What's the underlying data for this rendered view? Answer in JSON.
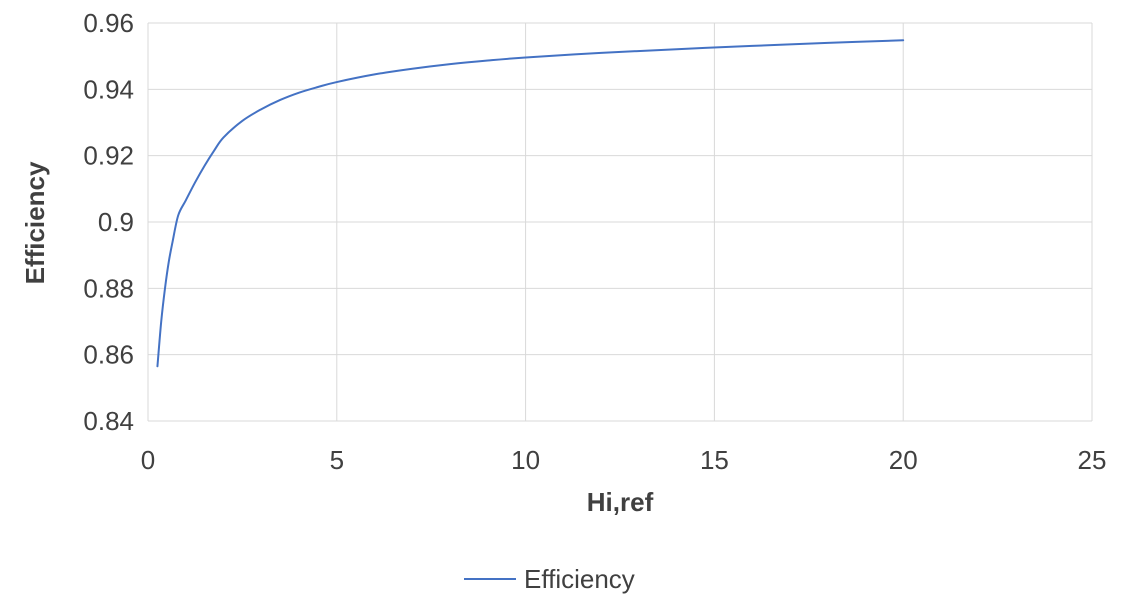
{
  "chart_data": {
    "type": "line",
    "title": "",
    "xlabel": "Hi,ref",
    "ylabel": "Efficiency",
    "xlim": [
      0,
      25
    ],
    "ylim": [
      0.84,
      0.96
    ],
    "x_ticks": [
      0,
      5,
      10,
      15,
      20,
      25
    ],
    "x_tick_labels": [
      "0",
      "5",
      "10",
      "15",
      "20",
      "25"
    ],
    "y_ticks": [
      0.84,
      0.86,
      0.88,
      0.9,
      0.92,
      0.94,
      0.96
    ],
    "y_tick_labels": [
      "0.84",
      "0.86",
      "0.88",
      "0.9",
      "0.92",
      "0.94",
      "0.96"
    ],
    "grid": true,
    "legend_position": "bottom",
    "series": [
      {
        "name": "Efficiency",
        "color": "#4472c4",
        "x": [
          0.25,
          0.35,
          0.45,
          0.55,
          0.65,
          0.8,
          1.0,
          1.25,
          1.5,
          1.75,
          2.0,
          2.5,
          3.0,
          3.5,
          4.0,
          4.5,
          5.0,
          6.0,
          7.0,
          8.0,
          9.0,
          10.0,
          12.0,
          14.0,
          16.0,
          18.0,
          20.0
        ],
        "y": [
          0.8565,
          0.87,
          0.88,
          0.888,
          0.894,
          0.902,
          0.9065,
          0.912,
          0.917,
          0.9215,
          0.9255,
          0.9305,
          0.934,
          0.9368,
          0.939,
          0.9407,
          0.9422,
          0.9445,
          0.9462,
          0.9476,
          0.9487,
          0.9496,
          0.951,
          0.9521,
          0.9531,
          0.954,
          0.9548
        ]
      }
    ]
  }
}
